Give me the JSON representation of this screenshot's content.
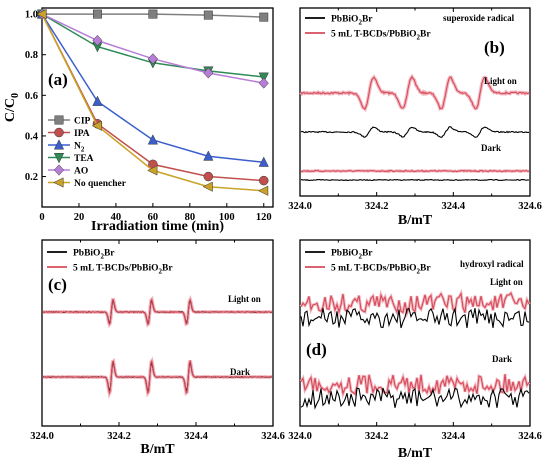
{
  "chart_data": [
    {
      "panel": "(a)",
      "type": "line",
      "xlabel": "Irradiation time (min)",
      "ylabel_main": "C/C",
      "ylabel_sub": "0",
      "xlim": [
        0,
        125
      ],
      "ylim": [
        0.05,
        1.03
      ],
      "xticks": [
        "0",
        "20",
        "40",
        "60",
        "80",
        "100",
        "120"
      ],
      "yticks": [
        "0.2",
        "0.4",
        "0.6",
        "0.8",
        "1.0"
      ],
      "x": [
        0,
        30,
        60,
        90,
        120
      ],
      "series": [
        {
          "name": "CIP",
          "name_sub": "",
          "marker": "square",
          "color": "#7f7f7f",
          "values": [
            1.0,
            1.0,
            1.0,
            0.995,
            0.985
          ]
        },
        {
          "name": "IPA",
          "name_sub": "",
          "marker": "circle",
          "color": "#c0504d",
          "values": [
            1.0,
            0.46,
            0.26,
            0.2,
            0.18
          ]
        },
        {
          "name": "N",
          "name_sub": "2",
          "marker": "triangle",
          "color": "#3a5fcd",
          "values": [
            1.0,
            0.57,
            0.38,
            0.3,
            0.27
          ]
        },
        {
          "name": "TEA",
          "name_sub": "",
          "marker": "triangle-down",
          "color": "#2e8b57",
          "values": [
            1.0,
            0.84,
            0.76,
            0.72,
            0.69
          ]
        },
        {
          "name": "AO",
          "name_sub": "",
          "marker": "diamond",
          "color": "#b77ed8",
          "values": [
            1.0,
            0.87,
            0.78,
            0.71,
            0.66
          ]
        },
        {
          "name": "No quencher",
          "name_sub": "",
          "marker": "triangle-left",
          "color": "#c9a227",
          "values": [
            1.0,
            0.45,
            0.23,
            0.15,
            0.13
          ]
        }
      ]
    },
    {
      "panel": "(b)",
      "type": "line",
      "annotation": "superoxide radical",
      "xlabel": "B/mT",
      "xlim": [
        324.0,
        324.6
      ],
      "xticks": [
        "324.0",
        "324.2",
        "324.4",
        "324.6"
      ],
      "series": [
        {
          "name": "PbBiO",
          "name_sub": "2",
          "name_tail": "Br",
          "color": "#000000"
        },
        {
          "name": "5 mL T-BCDs/PbBiO",
          "name_sub": "2",
          "name_tail": "Br",
          "color": "#d64b5a"
        }
      ],
      "labels": {
        "light": "Light on",
        "dark": "Dark"
      },
      "peak_positions": [
        324.18,
        324.28,
        324.38,
        324.47
      ]
    },
    {
      "panel": "(c)",
      "type": "line",
      "xlabel": "B/mT",
      "xlim": [
        324.0,
        324.6
      ],
      "xticks": [
        "324.0",
        "324.2",
        "324.4",
        "324.6"
      ],
      "series": [
        {
          "name": "PbBiO",
          "name_sub": "2",
          "name_tail": "Br",
          "color": "#000000"
        },
        {
          "name": "5 mL T-BCDs/PbBiO",
          "name_sub": "2",
          "name_tail": "Br",
          "color": "#d64b5a"
        }
      ],
      "labels": {
        "light": "Light on",
        "dark": "Dark"
      },
      "peak_positions": [
        324.18,
        324.28,
        324.38
      ]
    },
    {
      "panel": "(d)",
      "type": "line",
      "annotation": "hydroxyl radical",
      "xlabel": "B/mT",
      "xlim": [
        324.0,
        324.6
      ],
      "xticks": [
        "324.0",
        "324.2",
        "324.4",
        "324.6"
      ],
      "series": [
        {
          "name": "PbBiO",
          "name_sub": "2",
          "name_tail": "Br",
          "color": "#000000"
        },
        {
          "name": "5 mL T-BCDs/PbBiO",
          "name_sub": "2",
          "name_tail": "Br",
          "color": "#d64b5a"
        }
      ],
      "labels": {
        "light": "Light on",
        "dark": "Dark"
      }
    }
  ]
}
